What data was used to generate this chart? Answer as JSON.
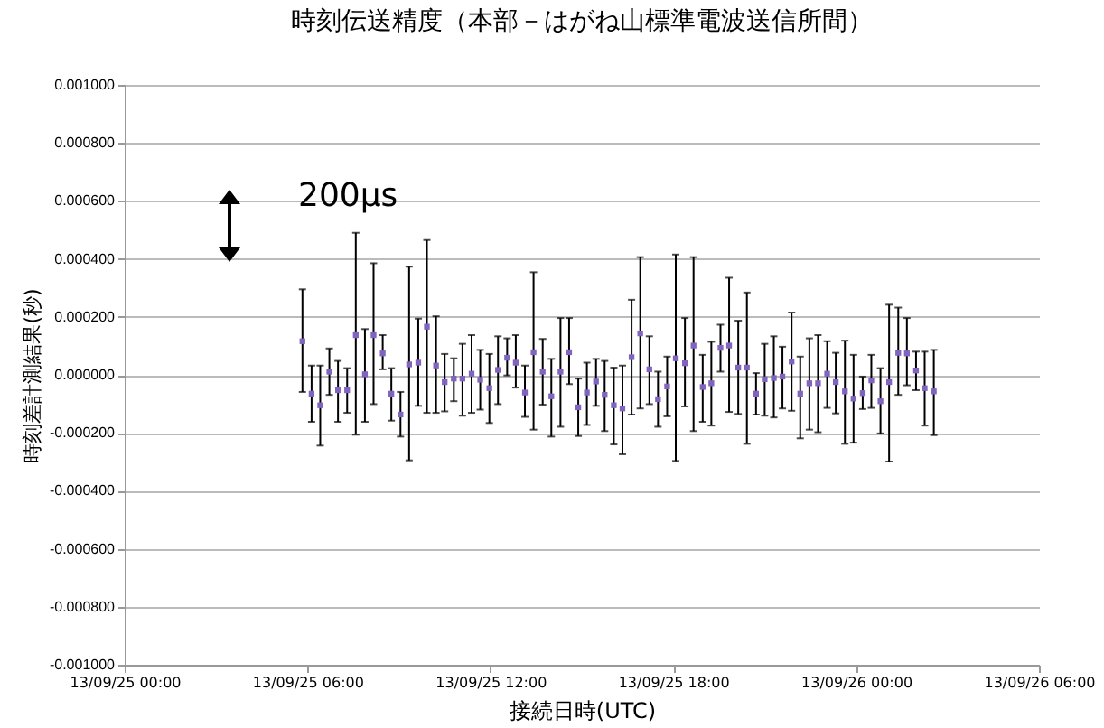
{
  "chart_data": {
    "type": "scatter",
    "title": "時刻伝送精度（本部－はがね山標準電波送信所間）",
    "xlabel": "接続日時(UTC)",
    "ylabel": "時刻差計測結果(秒)",
    "annotations": [
      "200µs"
    ],
    "x": [
      "--09-25T05:50",
      "--09-25T06:08",
      "--09-25T06:25",
      "--09-25T06:43",
      "--09-25T07:00",
      "--09-25T07:18",
      "--09-25T07:35",
      "--09-25T07:53",
      "--09-25T08:10",
      "--09-25T08:28",
      "--09-25T08:45",
      "--09-25T09:03",
      "--09-25T09:20",
      "--09-25T09:38",
      "--09-25T09:55",
      "--09-25T10:13",
      "--09-25T10:30",
      "--09-25T10:48",
      "--09-25T11:05",
      "--09-25T11:23",
      "--09-25T11:40",
      "--09-25T11:58",
      "--09-25T12:15",
      "--09-25T12:33",
      "--09-25T12:50",
      "--09-25T13:08",
      "--09-25T13:25",
      "--09-25T13:43",
      "--09-25T14:00",
      "--09-25T14:18",
      "--09-25T14:35",
      "--09-25T14:53",
      "--09-25T15:10",
      "--09-25T15:28",
      "--09-25T15:45",
      "--09-25T16:03",
      "--09-25T16:20",
      "--09-25T16:38",
      "--09-25T16:55",
      "--09-25T17:13",
      "--09-25T17:30",
      "--09-25T17:48",
      "--09-25T18:05",
      "--09-25T18:23",
      "--09-25T18:40",
      "--09-25T18:58",
      "--09-25T19:15",
      "--09-25T19:33",
      "--09-25T19:50",
      "--09-25T20:08",
      "--09-25T20:25",
      "--09-25T20:43",
      "--09-25T21:00",
      "--09-25T21:18",
      "--09-25T21:35",
      "--09-25T21:53",
      "--09-25T22:10",
      "--09-25T22:28",
      "--09-25T22:45",
      "--09-25T23:03",
      "--09-25T23:20",
      "--09-25T23:38",
      "--09-25T23:55",
      "--09-26T00:13",
      "--09-26T00:30",
      "--09-26T00:48",
      "--09-26T01:05",
      "--09-26T01:23",
      "--09-26T01:40",
      "--09-26T01:58",
      "--09-26T02:15",
      "--09-26T02:33"
    ],
    "series": [
      {
        "color": "#8064c0",
        "values": [
          0.000116,
          -6.5e-05,
          -0.000105,
          1.1e-05,
          -5.3e-05,
          -5.3e-05,
          0.000137,
          2e-06,
          0.000137,
          7.4e-05,
          -6.5e-05,
          -0.000137,
          3.6e-05,
          4.2e-05,
          0.000166,
          3.2e-05,
          -2.5e-05,
          -1.3e-05,
          -1.3e-05,
          4e-06,
          -1.7e-05,
          -4.6e-05,
          1.7e-05,
          5.9e-05,
          4.2e-05,
          -6.1e-05,
          7.8e-05,
          1.1e-05,
          -7.4e-05,
          1.1e-05,
          7.8e-05,
          -0.000112,
          -6.1e-05,
          -2.3e-05,
          -6.9e-05,
          -0.000105,
          -0.000116,
          6.1e-05,
          0.000143,
          1.9e-05,
          -8.4e-05,
          -4e-05,
          5.7e-05,
          4e-05,
          0.000101,
          -4.2e-05,
          -2.9e-05,
          9.3e-05,
          0.000101,
          2.5e-05,
          2.5e-05,
          -6.5e-05,
          -1.5e-05,
          -1.1e-05,
          -6e-06,
          4.6e-05,
          -6.5e-05,
          -2.9e-05,
          -2.9e-05,
          4e-06,
          -2.5e-05,
          -5.7e-05,
          -8.2e-05,
          -6.3e-05,
          -1.9e-05,
          -9.1e-05,
          -2.5e-05,
          7.6e-05,
          7.4e-05,
          1.5e-05,
          -4.6e-05,
          -5.7e-05
        ],
        "errors": [
          [
            -5.9e-05,
            0.000295
          ],
          [
            -0.000162,
            3.2e-05
          ],
          [
            -0.000244,
            3.2e-05
          ],
          [
            -6.9e-05,
            9.1e-05
          ],
          [
            -0.000162,
            4.8e-05
          ],
          [
            -0.000131,
            2.3e-05
          ],
          [
            -0.000206,
            0.00049
          ],
          [
            -0.000162,
            0.000158
          ],
          [
            -0.000101,
            0.000385
          ],
          [
            1.9e-05,
            0.000137
          ],
          [
            -0.000158,
            2.3e-05
          ],
          [
            -0.000213,
            -5.9e-05
          ],
          [
            -0.000295,
            0.000373
          ],
          [
            -0.000107,
            0.000194
          ],
          [
            -0.000131,
            0.000465
          ],
          [
            -0.000131,
            0.000202
          ],
          [
            -0.000126,
            7.2e-05
          ],
          [
            -9.1e-05,
            5.7e-05
          ],
          [
            -0.000141,
            0.000107
          ],
          [
            -0.000131,
            0.000137
          ],
          [
            -0.00012,
            8.6e-05
          ],
          [
            -0.000166,
            7.2e-05
          ],
          [
            -0.000101,
            0.000133
          ],
          [
            -2e-06,
            0.000126
          ],
          [
            -4.4e-05,
            0.000137
          ],
          [
            -0.000145,
            3.2e-05
          ],
          [
            -0.000189,
            0.000354
          ],
          [
            -0.000103,
            0.000124
          ],
          [
            -0.000213,
            5.5e-05
          ],
          [
            -0.000179,
            0.000196
          ],
          [
            -3.2e-05,
            0.000196
          ],
          [
            -0.000211,
            -1.3e-05
          ],
          [
            -0.000173,
            4.2e-05
          ],
          [
            -0.000107,
            5.5e-05
          ],
          [
            -0.000194,
            4.8e-05
          ],
          [
            -0.00024,
            2.5e-05
          ],
          [
            -0.000274,
            3.2e-05
          ],
          [
            -0.000137,
            0.000259
          ],
          [
            -0.000116,
            0.000406
          ],
          [
            -0.000101,
            0.000133
          ],
          [
            -0.000179,
            1.1e-05
          ],
          [
            -0.000143,
            6.3e-05
          ],
          [
            -0.000297,
            0.000415
          ],
          [
            -0.000109,
            0.000196
          ],
          [
            -0.000194,
            0.000406
          ],
          [
            -0.000162,
            6.9e-05
          ],
          [
            -0.000175,
            0.000114
          ],
          [
            1.1e-05,
            0.000173
          ],
          [
            -0.000128,
            0.000335
          ],
          [
            -0.000135,
            0.000187
          ],
          [
            -0.000238,
            0.000284
          ],
          [
            -0.000137,
            6e-06
          ],
          [
            -0.000141,
            0.000107
          ],
          [
            -0.000147,
            0.000133
          ],
          [
            -0.000116,
            9.7e-05
          ],
          [
            -0.000124,
            0.000215
          ],
          [
            -0.000219,
            6.3e-05
          ],
          [
            -0.000189,
            0.000126
          ],
          [
            -0.000198,
            0.000137
          ],
          [
            -0.000114,
            0.000116
          ],
          [
            -0.000133,
            7.6e-05
          ],
          [
            -0.000238,
            0.000118
          ],
          [
            -0.000234,
            6.9e-05
          ],
          [
            -0.000118,
            -6e-06
          ],
          [
            -0.000114,
            6.9e-05
          ],
          [
            -0.000202,
            2.3e-05
          ],
          [
            -0.000299,
            0.000242
          ],
          [
            -6.9e-05,
            0.000232
          ],
          [
            -3.6e-05,
            0.000196
          ],
          [
            -5.3e-05,
            8e-05
          ],
          [
            -0.000175,
            8e-05
          ],
          [
            -0.000208,
            8.6e-05
          ]
        ]
      }
    ],
    "xlim": [
      "--09-25T00:00",
      "--09-26T06:00"
    ],
    "xticks": [
      {
        "value": "--09-25T00:00",
        "label": "13/09/25 00:00"
      },
      {
        "value": "--09-25T06:00",
        "label": "13/09/25 06:00"
      },
      {
        "value": "--09-25T12:00",
        "label": "13/09/25 12:00"
      },
      {
        "value": "--09-25T18:00",
        "label": "13/09/25 18:00"
      },
      {
        "value": "--09-26T00:00",
        "label": "13/09/26 00:00"
      },
      {
        "value": "--09-26T06:00",
        "label": "13/09/26 06:00"
      }
    ],
    "ylim": [
      -0.001,
      0.001
    ],
    "yticks": [
      {
        "value": -0.001,
        "label": "-0.001000"
      },
      {
        "value": -0.0008,
        "label": "-0.000800"
      },
      {
        "value": -0.0006,
        "label": "-0.000600"
      },
      {
        "value": -0.0004,
        "label": "-0.000400"
      },
      {
        "value": -0.0002,
        "label": "-0.000200"
      },
      {
        "value": 0,
        "label": "0.000000"
      },
      {
        "value": 0.0002,
        "label": "0.000200"
      },
      {
        "value": 0.0004,
        "label": "0.000400"
      },
      {
        "value": 0.0006,
        "label": "0.000600"
      },
      {
        "value": 0.0008,
        "label": "0.000800"
      },
      {
        "value": 0.001,
        "label": "0.001000"
      }
    ],
    "grid": "y",
    "marker": "square"
  }
}
